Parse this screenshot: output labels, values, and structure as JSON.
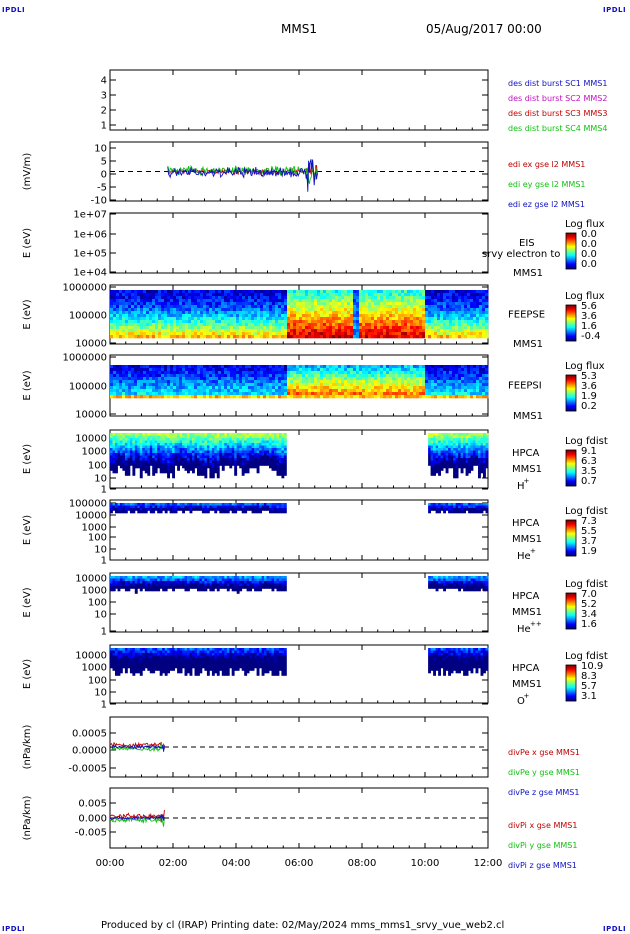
{
  "corners": {
    "tl": "IPDLI",
    "tr": "IPDLI",
    "bl": "IPDLI",
    "br": "IPDLI"
  },
  "header": {
    "mission": "MMS1",
    "date": "05/Aug/2017 00:00"
  },
  "footer": {
    "text": "Produced by cl (IRAP)   Printing date: 02/May/2024   mms_mms1_srvy_vue_web2.cl"
  },
  "colors": {
    "spacecraft": [
      "#1010c0",
      "#c010c0",
      "#c00000",
      "#10c010"
    ],
    "xyz": [
      "#c00000",
      "#10c010",
      "#1010c0"
    ]
  },
  "chart_data": [
    {
      "id": "sc-id",
      "type": "line",
      "ylim": [
        0.5,
        4.5
      ],
      "yticks": [
        "1",
        "2",
        "3",
        "4"
      ],
      "legend": [
        "des dist burst SC1 MMS1",
        "des dist burst SC2 MMS2",
        "des dist burst SC3 MMS3",
        "des dist burst SC4 MMS4"
      ],
      "legend_placement": "right"
    },
    {
      "id": "edi",
      "type": "line",
      "ylabel": "(mV/m)",
      "ylim": [
        -10,
        12
      ],
      "yticks": [
        "10",
        "5",
        "0",
        "-5",
        "-10"
      ],
      "x_range": [
        "01:50",
        "06:35"
      ],
      "legend": [
        "edi ex gse l2 MMS1",
        "edi ey gse l2 MMS1",
        "edi ez gse l2 MMS1"
      ]
    },
    {
      "id": "eis",
      "type": "heatmap",
      "ylabel": "E (eV)",
      "yticks": [
        "1e+07",
        "1e+06",
        "1e+05",
        "1e+04"
      ],
      "labels": [
        "EIS",
        "MMS1"
      ],
      "overlay": "srvy electron to",
      "colorbar": {
        "title": "Log flux",
        "ticks": [
          "0.0",
          "0.0",
          "0.0",
          "0.0"
        ]
      }
    },
    {
      "id": "feeps-e",
      "type": "heatmap",
      "ylabel": "E (eV)",
      "yticks": [
        "1000000",
        "100000",
        "10000"
      ],
      "labels": [
        "FEEPSE",
        "MMS1"
      ],
      "colorbar": {
        "title": "Log flux",
        "ticks": [
          "5.6",
          "3.6",
          "1.6",
          "-0.4"
        ]
      }
    },
    {
      "id": "feeps-i",
      "type": "heatmap",
      "ylabel": "E (eV)",
      "yticks": [
        "1000000",
        "100000",
        "10000"
      ],
      "labels": [
        "FEEPSI",
        "MMS1"
      ],
      "colorbar": {
        "title": "Log flux",
        "ticks": [
          "5.3",
          "3.6",
          "1.9",
          "0.2"
        ]
      }
    },
    {
      "id": "hpca-h",
      "type": "heatmap",
      "ylabel": "E (eV)",
      "yticks": [
        "10000",
        "1000",
        "100",
        "10",
        "1"
      ],
      "labels": [
        "HPCA",
        "MMS1",
        "H",
        "+"
      ],
      "colorbar": {
        "title": "Log fdist",
        "ticks": [
          "9.1",
          "6.3",
          "3.5",
          "0.7"
        ]
      }
    },
    {
      "id": "hpca-he",
      "type": "heatmap",
      "ylabel": "E (eV)",
      "yticks": [
        "100000",
        "10000",
        "1000",
        "100",
        "10",
        "1"
      ],
      "labels": [
        "HPCA",
        "MMS1",
        "He",
        "+"
      ],
      "colorbar": {
        "title": "Log fdist",
        "ticks": [
          "7.3",
          "5.5",
          "3.7",
          "1.9"
        ]
      }
    },
    {
      "id": "hpca-hepp",
      "type": "heatmap",
      "ylabel": "E (eV)",
      "yticks": [
        "10000",
        "1000",
        "100",
        "10",
        "1"
      ],
      "labels": [
        "HPCA",
        "MMS1",
        "He",
        "++"
      ],
      "colorbar": {
        "title": "Log fdist",
        "ticks": [
          "7.0",
          "5.2",
          "3.4",
          "1.6"
        ]
      }
    },
    {
      "id": "hpca-o",
      "type": "heatmap",
      "ylabel": "E (eV)",
      "yticks": [
        "10000",
        "1000",
        "100",
        "10",
        "1"
      ],
      "labels": [
        "HPCA",
        "MMS1",
        "O",
        "+"
      ],
      "colorbar": {
        "title": "Log fdist",
        "ticks": [
          "10.9",
          "8.3",
          "5.7",
          "3.1"
        ]
      }
    },
    {
      "id": "divpe",
      "type": "line",
      "ylabel": "(nPa/km)",
      "ylim": [
        -0.008,
        0.008
      ],
      "yticks": [
        "0.0005",
        "0.0000",
        "-0.0005"
      ],
      "x_range": [
        "00:00",
        "01:45"
      ],
      "legend": [
        "divPe x gse MMS1",
        "divPe y gse MMS1",
        "divPe z gse MMS1"
      ]
    },
    {
      "id": "divpi",
      "type": "line",
      "ylabel": "(nPa/km)",
      "ylim": [
        -0.008,
        0.008
      ],
      "yticks": [
        "0.005",
        "0.000",
        "-0.005"
      ],
      "x_range": [
        "00:00",
        "01:45"
      ],
      "legend": [
        "divPi x gse MMS1",
        "divPi y gse MMS1",
        "divPi z gse MMS1"
      ]
    }
  ],
  "xaxis": {
    "ticks": [
      "00:00",
      "02:00",
      "04:00",
      "06:00",
      "08:00",
      "10:00",
      "12:00"
    ],
    "range_hours": [
      0,
      12
    ]
  }
}
